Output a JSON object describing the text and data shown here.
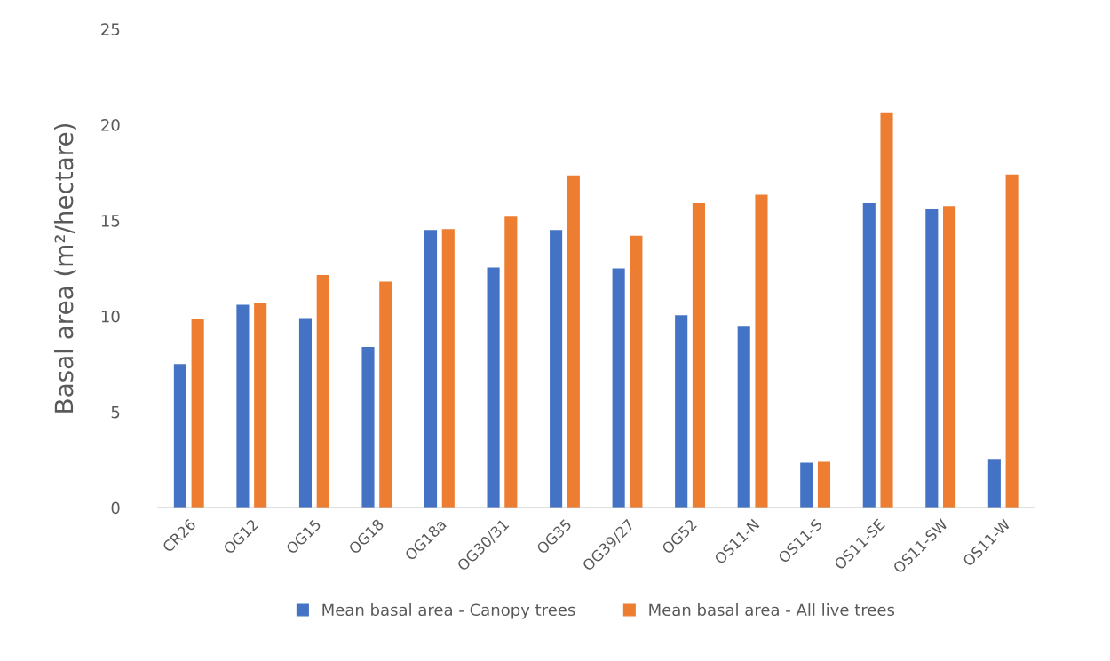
{
  "chart_data": {
    "type": "bar",
    "ylabel": "Basal area (m²/hectare)",
    "categories": [
      "CR26",
      "OG12",
      "OG15",
      "OG18",
      "OG18a",
      "OG30/31",
      "OG35",
      "OG39/27",
      "OG52",
      "OS11-N",
      "OS11-S",
      "OS11-SE",
      "OS11-SW",
      "OS11-W"
    ],
    "series": [
      {
        "name": "Mean basal area - Canopy trees",
        "color": "#4472c4",
        "values": [
          7.5,
          10.6,
          9.9,
          8.4,
          14.5,
          12.55,
          14.5,
          12.5,
          10.05,
          9.5,
          2.35,
          15.9,
          15.6,
          2.55
        ]
      },
      {
        "name": "Mean basal area - All live trees",
        "color": "#ed7d31",
        "values": [
          9.85,
          10.7,
          12.15,
          11.8,
          14.55,
          15.2,
          17.35,
          14.2,
          15.9,
          16.35,
          2.4,
          20.65,
          15.75,
          17.4
        ]
      }
    ],
    "ylim": [
      0,
      25
    ],
    "yticks": [
      0,
      5,
      10,
      15,
      20,
      25
    ],
    "grid": false,
    "legend": "bottom"
  }
}
